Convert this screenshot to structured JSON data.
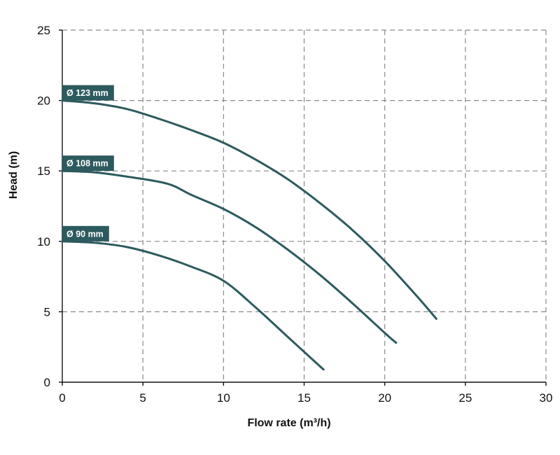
{
  "chart_data": {
    "type": "line",
    "xlabel": "Flow rate (m³/h)",
    "ylabel": "Head (m)",
    "xlim": [
      0,
      30
    ],
    "ylim": [
      0,
      25
    ],
    "xticks": [
      "0",
      "5",
      "10",
      "15",
      "20",
      "25",
      "30"
    ],
    "yticks": [
      "0",
      "5",
      "10",
      "15",
      "20",
      "25"
    ],
    "grid": true,
    "colors": {
      "curve": "#2d5a5e",
      "tag_bg": "#2d5a5e",
      "grid": "#8a8a8a",
      "axis": "#111111"
    },
    "series": [
      {
        "name": "Ø 123 mm",
        "x": [
          0,
          2,
          4,
          6,
          8,
          10,
          12,
          14,
          16,
          18,
          20,
          22,
          23.2
        ],
        "y": [
          20,
          19.8,
          19.4,
          18.7,
          17.9,
          17.0,
          15.8,
          14.4,
          12.7,
          10.8,
          8.6,
          6.1,
          4.5
        ]
      },
      {
        "name": "Ø 108 mm",
        "x": [
          0,
          2,
          4,
          6.5,
          8,
          10,
          12,
          14,
          16,
          18,
          20,
          20.7
        ],
        "y": [
          15,
          14.9,
          14.6,
          14.1,
          13.3,
          12.3,
          11.0,
          9.4,
          7.6,
          5.6,
          3.5,
          2.8
        ]
      },
      {
        "name": "Ø 90 mm",
        "x": [
          0,
          2,
          4,
          6,
          8,
          10,
          12,
          14,
          16.2
        ],
        "y": [
          10,
          9.9,
          9.6,
          9.0,
          8.2,
          7.2,
          5.3,
          3.2,
          0.9
        ]
      }
    ]
  }
}
